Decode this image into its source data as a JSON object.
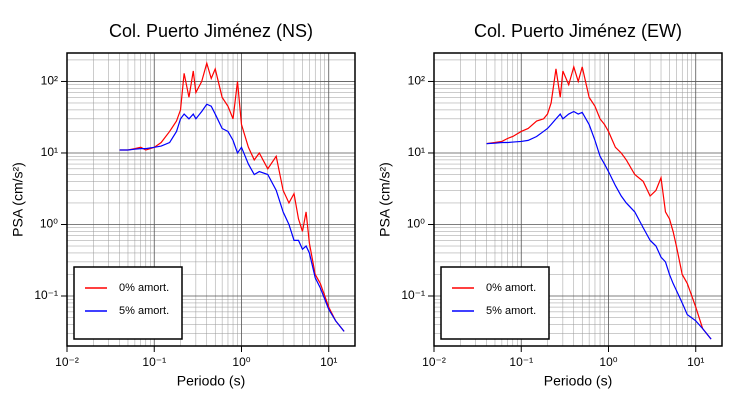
{
  "chart_data": [
    {
      "type": "line",
      "title": "Col. Puerto Jiménez (NS)",
      "x_label": "Periodo (s)",
      "y_label": "PSA (cm/s²)",
      "x_scale": "log",
      "y_scale": "log",
      "grid": true,
      "legend": "lower left",
      "xlim": [
        0.01,
        20
      ],
      "ylim": [
        0.02,
        250
      ],
      "xticks": [
        {
          "value": 0.01,
          "label": "10⁻²"
        },
        {
          "value": 0.1,
          "label": "10⁻¹"
        },
        {
          "value": 1,
          "label": "10⁰"
        },
        {
          "value": 10,
          "label": "10¹"
        }
      ],
      "yticks": [
        {
          "value": 0.1,
          "label": "10⁻¹"
        },
        {
          "value": 1,
          "label": "10⁰"
        },
        {
          "value": 10,
          "label": "10¹"
        },
        {
          "value": 100,
          "label": "10²"
        }
      ],
      "x": [
        0.04,
        0.05,
        0.06,
        0.07,
        0.08,
        0.1,
        0.12,
        0.15,
        0.18,
        0.2,
        0.22,
        0.25,
        0.28,
        0.3,
        0.35,
        0.4,
        0.45,
        0.5,
        0.6,
        0.7,
        0.8,
        0.9,
        1.0,
        1.2,
        1.4,
        1.6,
        2.0,
        2.5,
        3.0,
        3.5,
        4.0,
        4.5,
        5.0,
        5.5,
        6.0,
        7.0,
        8.0,
        10,
        12,
        15
      ],
      "series": [
        {
          "name": "0% amort.",
          "color": "#ff0000",
          "values": [
            11,
            11,
            11.5,
            12,
            11,
            12,
            14,
            20,
            28,
            40,
            130,
            60,
            140,
            70,
            100,
            180,
            110,
            150,
            60,
            45,
            30,
            100,
            25,
            12,
            8,
            10,
            6,
            9,
            3,
            2,
            2.7,
            1.2,
            0.8,
            1.5,
            0.55,
            0.2,
            0.15,
            0.07,
            0.045,
            0.032
          ]
        },
        {
          "name": "5% amort.",
          "color": "#0000ff",
          "values": [
            11,
            11,
            11.3,
            11.5,
            11.5,
            12,
            12.5,
            14,
            20,
            30,
            35,
            30,
            35,
            30,
            38,
            48,
            45,
            35,
            22,
            20,
            15,
            10,
            12,
            7,
            5,
            5.5,
            5,
            3,
            1.5,
            1,
            0.6,
            0.6,
            0.45,
            0.5,
            0.4,
            0.18,
            0.13,
            0.065,
            0.045,
            0.032
          ]
        }
      ]
    },
    {
      "type": "line",
      "title": "Col. Puerto Jiménez (EW)",
      "x_label": "Periodo (s)",
      "y_label": "PSA (cm/s²)",
      "x_scale": "log",
      "y_scale": "log",
      "grid": true,
      "legend": "lower left",
      "xlim": [
        0.01,
        20
      ],
      "ylim": [
        0.02,
        250
      ],
      "xticks": [
        {
          "value": 0.01,
          "label": "10⁻²"
        },
        {
          "value": 0.1,
          "label": "10⁻¹"
        },
        {
          "value": 1,
          "label": "10⁰"
        },
        {
          "value": 10,
          "label": "10¹"
        }
      ],
      "yticks": [
        {
          "value": 0.1,
          "label": "10⁻¹"
        },
        {
          "value": 1,
          "label": "10⁰"
        },
        {
          "value": 10,
          "label": "10¹"
        },
        {
          "value": 100,
          "label": "10²"
        }
      ],
      "x": [
        0.04,
        0.05,
        0.06,
        0.07,
        0.08,
        0.1,
        0.12,
        0.15,
        0.18,
        0.2,
        0.22,
        0.25,
        0.28,
        0.3,
        0.35,
        0.4,
        0.45,
        0.5,
        0.6,
        0.7,
        0.8,
        0.9,
        1.0,
        1.2,
        1.4,
        1.6,
        2.0,
        2.5,
        3.0,
        3.5,
        4.0,
        4.5,
        5.0,
        5.5,
        6.0,
        7.0,
        8.0,
        10,
        12,
        15
      ],
      "series": [
        {
          "name": "0% amort.",
          "color": "#ff0000",
          "values": [
            13.5,
            14,
            14.5,
            16,
            17,
            20,
            22,
            28,
            30,
            35,
            50,
            150,
            60,
            140,
            90,
            160,
            100,
            160,
            60,
            45,
            30,
            25,
            20,
            12,
            10,
            8,
            5,
            4,
            2.5,
            3,
            4.5,
            1.5,
            1.2,
            0.8,
            0.5,
            0.2,
            0.15,
            0.07,
            0.035,
            0.025
          ]
        },
        {
          "name": "5% amort.",
          "color": "#0000ff",
          "values": [
            13.5,
            13.7,
            14,
            14,
            14.2,
            14.5,
            15,
            17,
            20,
            22,
            25,
            30,
            35,
            30,
            35,
            38,
            35,
            37,
            25,
            15,
            9,
            7,
            5.5,
            3.5,
            2.5,
            2,
            1.5,
            0.9,
            0.6,
            0.5,
            0.35,
            0.3,
            0.2,
            0.15,
            0.12,
            0.08,
            0.055,
            0.045,
            0.035,
            0.025
          ]
        }
      ]
    }
  ]
}
